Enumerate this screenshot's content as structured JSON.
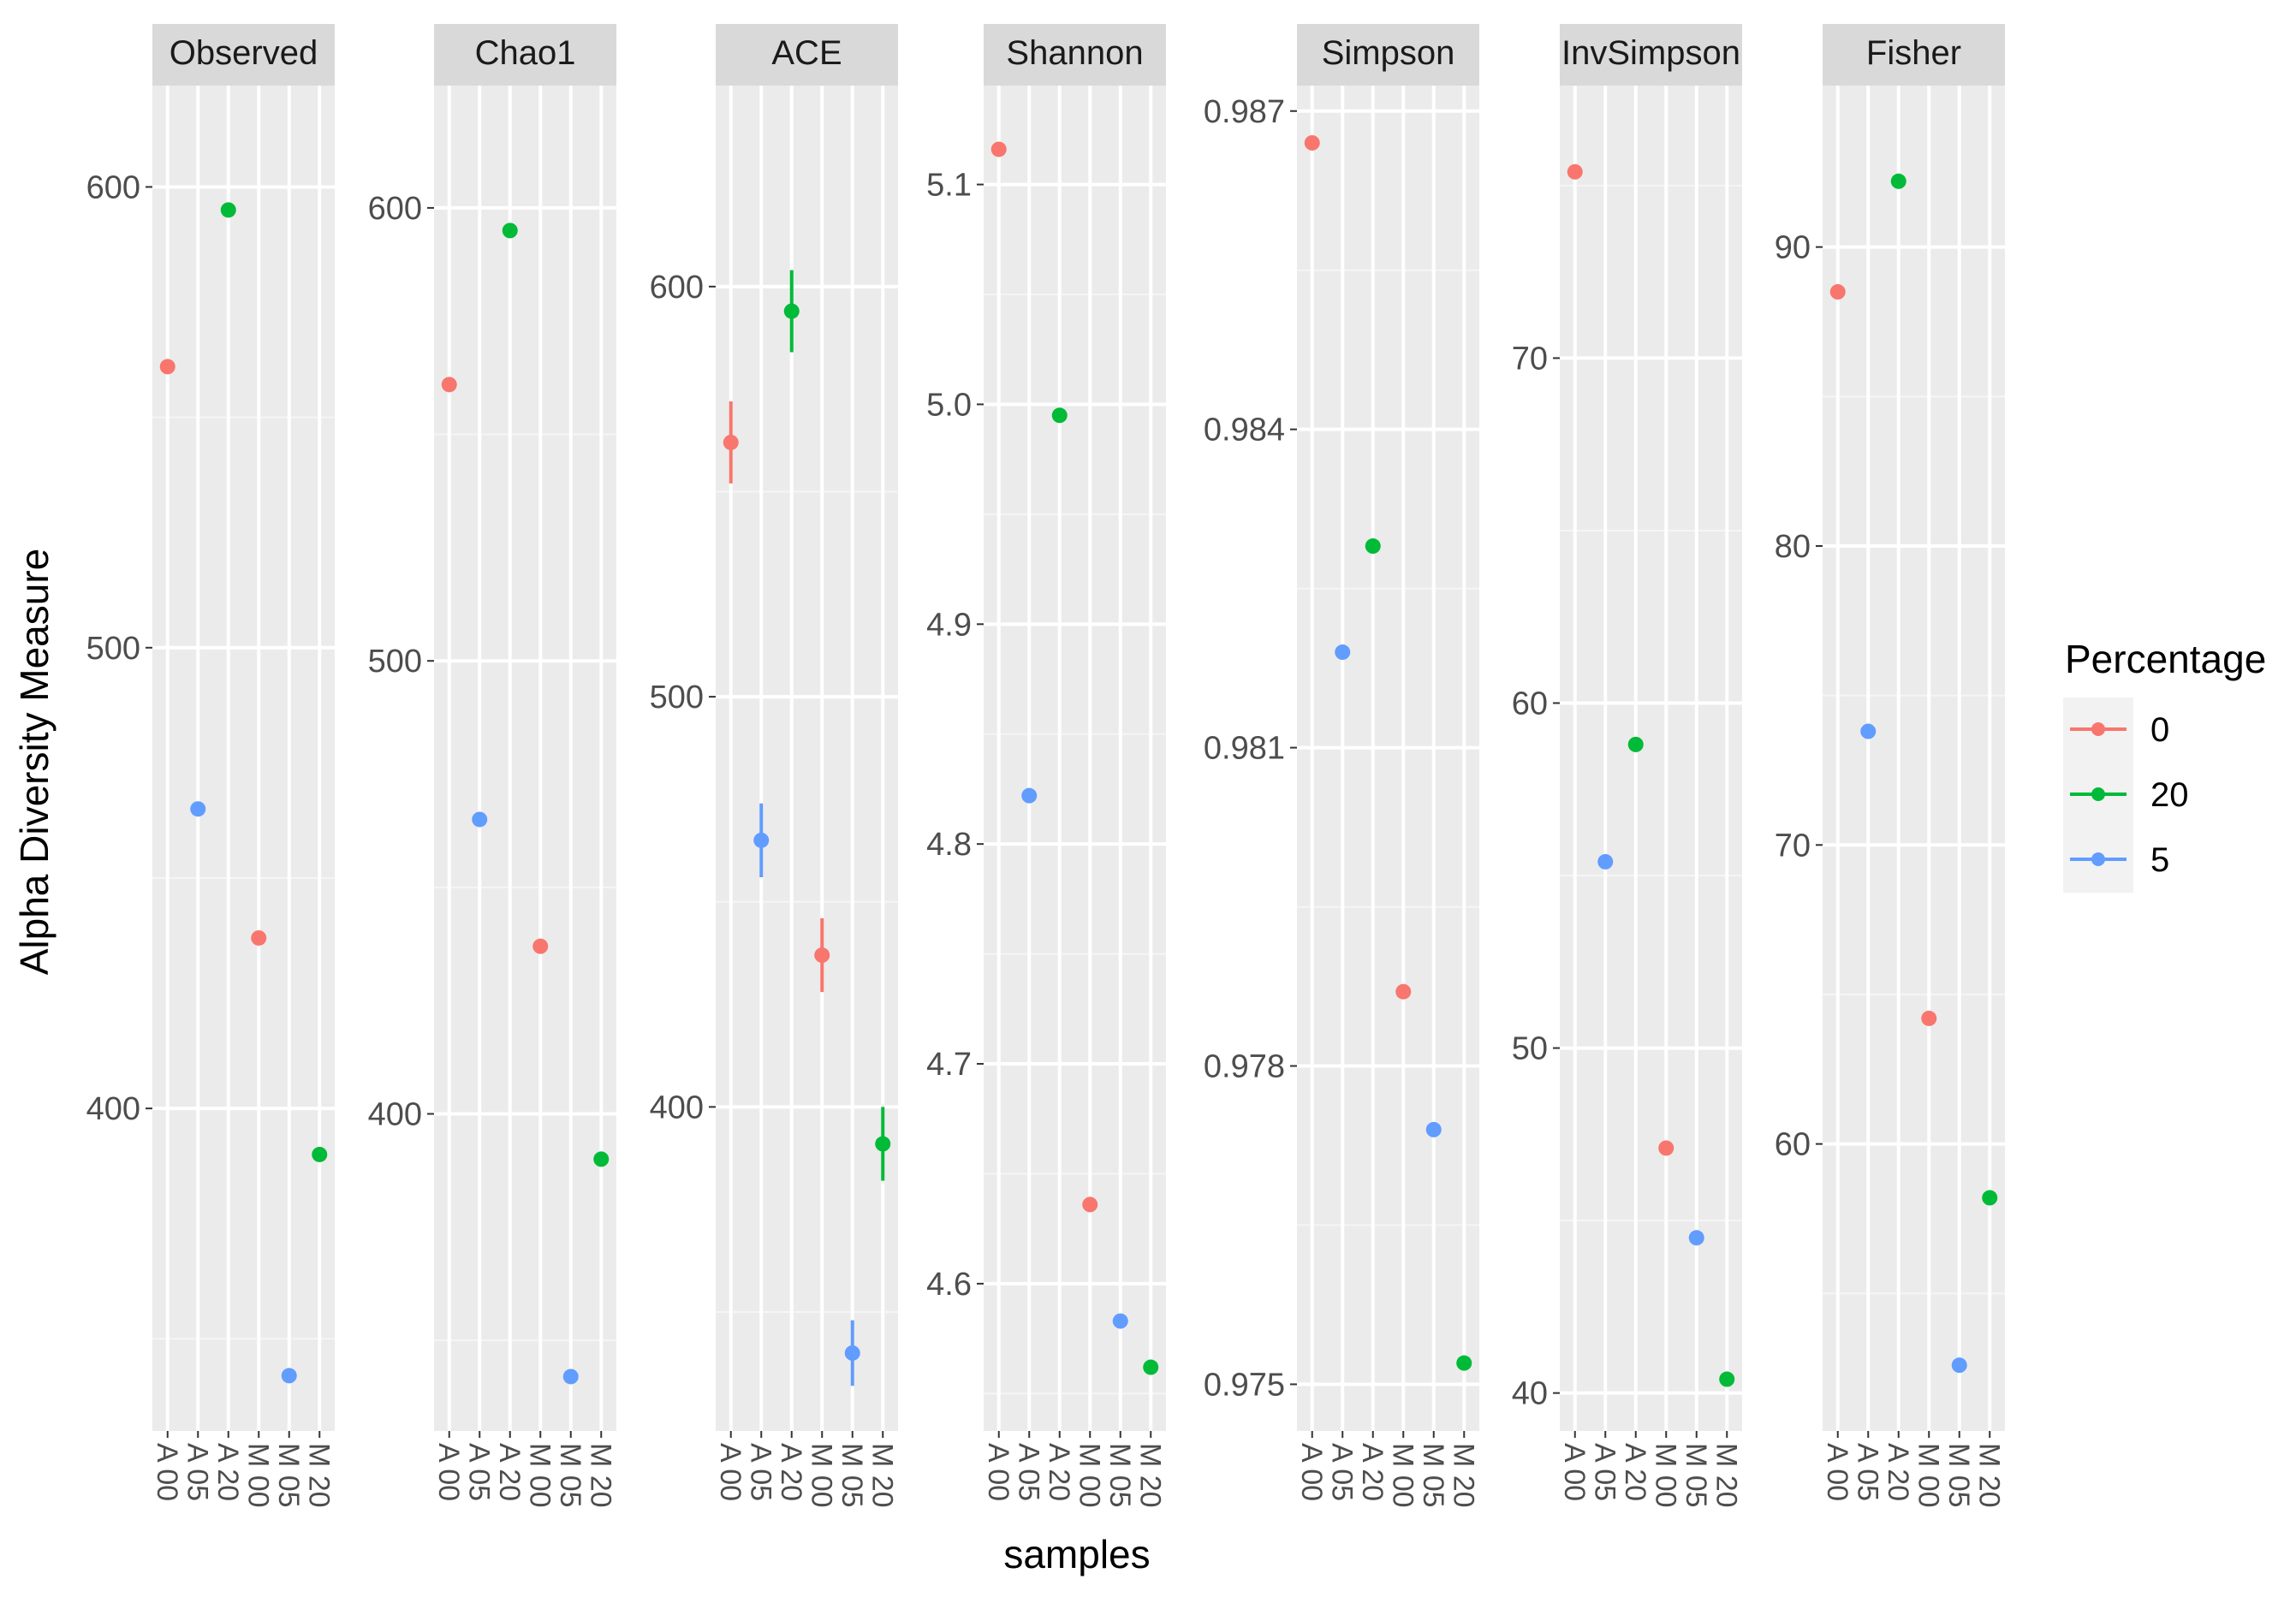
{
  "chart_data": {
    "type": "scatter",
    "layout": "faceted",
    "xlabel": "samples",
    "ylabel": "Alpha Diversity Measure",
    "categories": [
      "A 00",
      "A 05",
      "A 20",
      "M 00",
      "M 05",
      "M 20"
    ],
    "category_group": [
      "0",
      "5",
      "20",
      "0",
      "5",
      "20"
    ],
    "legend": {
      "title": "Percentage",
      "position": "right",
      "entries": [
        {
          "label": "0",
          "color": "#F8766D"
        },
        {
          "label": "20",
          "color": "#00BA38"
        },
        {
          "label": "5",
          "color": "#619CFF"
        }
      ]
    },
    "panels": [
      {
        "title": "Observed",
        "ylim": [
          330,
          622
        ],
        "major_ticks": [
          400,
          500,
          600
        ],
        "tick_labels": [
          "400",
          "500",
          "600"
        ],
        "minor_ticks": [
          350,
          450,
          550
        ],
        "values": [
          561,
          465,
          595,
          437,
          342,
          390
        ],
        "errors": [
          null,
          null,
          null,
          null,
          null,
          null
        ]
      },
      {
        "title": "Chao1",
        "ylim": [
          330,
          627
        ],
        "major_ticks": [
          400,
          500,
          600
        ],
        "tick_labels": [
          "400",
          "500",
          "600"
        ],
        "minor_ticks": [
          350,
          450,
          550
        ],
        "values": [
          561,
          465,
          595,
          437,
          342,
          390
        ],
        "errors": [
          null,
          null,
          null,
          null,
          null,
          null
        ]
      },
      {
        "title": "ACE",
        "ylim": [
          321,
          649
        ],
        "major_ticks": [
          400,
          500,
          600
        ],
        "tick_labels": [
          "400",
          "500",
          "600"
        ],
        "minor_ticks": [
          350,
          450,
          550
        ],
        "values": [
          562,
          465,
          594,
          437,
          340,
          391
        ],
        "errors": [
          10,
          9,
          10,
          9,
          8,
          9
        ]
      },
      {
        "title": "Shannon",
        "ylim": [
          4.533,
          5.145
        ],
        "major_ticks": [
          4.6,
          4.7,
          4.8,
          4.9,
          5.0,
          5.1
        ],
        "tick_labels": [
          "4.6",
          "4.7",
          "4.8",
          "4.9",
          "5.0",
          "5.1"
        ],
        "minor_ticks": [
          4.55,
          4.65,
          4.75,
          4.85,
          4.95,
          5.05
        ],
        "values": [
          5.116,
          4.822,
          4.995,
          4.636,
          4.583,
          4.562
        ],
        "errors": [
          null,
          null,
          null,
          null,
          null,
          null
        ]
      },
      {
        "title": "Simpson",
        "ylim": [
          0.97456,
          0.98724
        ],
        "major_ticks": [
          0.975,
          0.978,
          0.981,
          0.984,
          0.987
        ],
        "tick_labels": [
          "0.975",
          "0.978",
          "0.981",
          "0.984",
          "0.987"
        ],
        "minor_ticks": [
          0.9765,
          0.9795,
          0.9825,
          0.9855
        ],
        "values": [
          0.9867,
          0.9819,
          0.9829,
          0.9787,
          0.9774,
          0.9752
        ],
        "errors": [
          null,
          null,
          null,
          null,
          null,
          null
        ]
      },
      {
        "title": "InvSimpson",
        "ylim": [
          38.9,
          77.9
        ],
        "major_ticks": [
          40,
          50,
          60,
          70
        ],
        "tick_labels": [
          "40",
          "50",
          "60",
          "70"
        ],
        "minor_ticks": [
          45,
          55,
          65,
          75
        ],
        "values": [
          75.4,
          55.4,
          58.8,
          47.1,
          44.5,
          40.4
        ],
        "errors": [
          null,
          null,
          null,
          null,
          null,
          null
        ]
      },
      {
        "title": "Fisher",
        "ylim": [
          50.4,
          95.4
        ],
        "major_ticks": [
          60,
          70,
          80,
          90
        ],
        "tick_labels": [
          "60",
          "70",
          "80",
          "90"
        ],
        "minor_ticks": [
          55,
          65,
          75,
          85
        ],
        "values": [
          88.5,
          73.8,
          92.2,
          64.2,
          52.6,
          58.2
        ],
        "errors": [
          null,
          null,
          null,
          null,
          null,
          null
        ]
      }
    ]
  }
}
